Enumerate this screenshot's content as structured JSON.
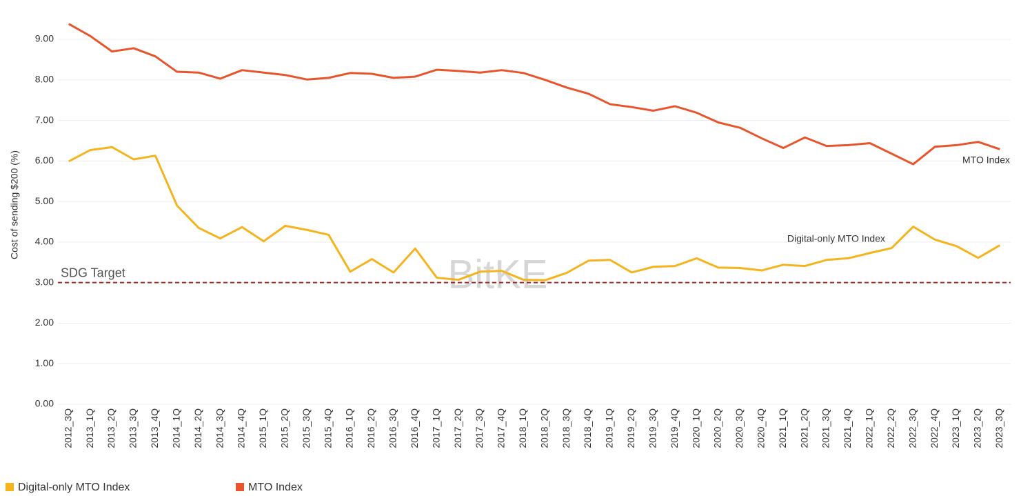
{
  "chart_data": {
    "type": "line",
    "y_label": "Cost of sending $200 (%)",
    "watermark": "BitKE",
    "categories": [
      "2012_3Q",
      "2013_1Q",
      "2013_2Q",
      "2013_3Q",
      "2013_4Q",
      "2014_1Q",
      "2014_2Q",
      "2014_3Q",
      "2014_4Q",
      "2015_1Q",
      "2015_2Q",
      "2015_3Q",
      "2015_4Q",
      "2016_1Q",
      "2016_2Q",
      "2016_3Q",
      "2016_4Q",
      "2017_1Q",
      "2017_2Q",
      "2017_3Q",
      "2017_4Q",
      "2018_1Q",
      "2018_2Q",
      "2018_3Q",
      "2018_4Q",
      "2019_1Q",
      "2019_2Q",
      "2019_3Q",
      "2019_4Q",
      "2020_1Q",
      "2020_2Q",
      "2020_3Q",
      "2020_4Q",
      "2021_1Q",
      "2021_2Q",
      "2021_3Q",
      "2021_4Q",
      "2022_1Q",
      "2022_2Q",
      "2022_3Q",
      "2022_4Q",
      "2023_1Q",
      "2023_2Q",
      "2023_3Q"
    ],
    "series": [
      {
        "name": "Digital-only MTO Index",
        "color": "#f5b41e",
        "values": [
          5.99,
          6.27,
          6.34,
          6.04,
          6.13,
          4.9,
          4.35,
          4.09,
          4.37,
          4.02,
          4.4,
          4.3,
          4.18,
          3.27,
          3.58,
          3.25,
          3.84,
          3.12,
          3.07,
          3.27,
          3.29,
          3.07,
          3.06,
          3.24,
          3.54,
          3.56,
          3.25,
          3.39,
          3.41,
          3.6,
          3.37,
          3.36,
          3.3,
          3.44,
          3.41,
          3.56,
          3.6,
          3.73,
          3.85,
          4.38,
          4.06,
          3.9,
          3.61,
          3.92
        ]
      },
      {
        "name": "MTO Index",
        "color": "#e8542c",
        "values": [
          9.38,
          9.08,
          8.7,
          8.78,
          8.58,
          8.2,
          8.18,
          8.03,
          8.24,
          8.18,
          8.12,
          8.01,
          8.05,
          8.17,
          8.15,
          8.05,
          8.08,
          8.25,
          8.22,
          8.18,
          8.24,
          8.17,
          8.0,
          7.81,
          7.66,
          7.4,
          7.33,
          7.24,
          7.35,
          7.19,
          6.95,
          6.82,
          6.56,
          6.32,
          6.58,
          6.37,
          6.39,
          6.44,
          6.18,
          5.92,
          6.35,
          6.39,
          6.47,
          6.29
        ]
      }
    ],
    "reference_line": {
      "value": 3,
      "label": "SDG Target",
      "color": "#a52a2a"
    },
    "ylim": [
      0,
      9.8
    ],
    "yticks": [
      {
        "value": 0,
        "label": "0.00"
      },
      {
        "value": 1,
        "label": "1.00"
      },
      {
        "value": 2,
        "label": "2.00"
      },
      {
        "value": 3,
        "label": "3.00"
      },
      {
        "value": 4,
        "label": "4.00"
      },
      {
        "value": 5,
        "label": "5.00"
      },
      {
        "value": 6,
        "label": "6.00"
      },
      {
        "value": 7,
        "label": "7.00"
      },
      {
        "value": 8,
        "label": "8.00"
      },
      {
        "value": 9,
        "label": "9.00"
      }
    ],
    "grid": true
  }
}
